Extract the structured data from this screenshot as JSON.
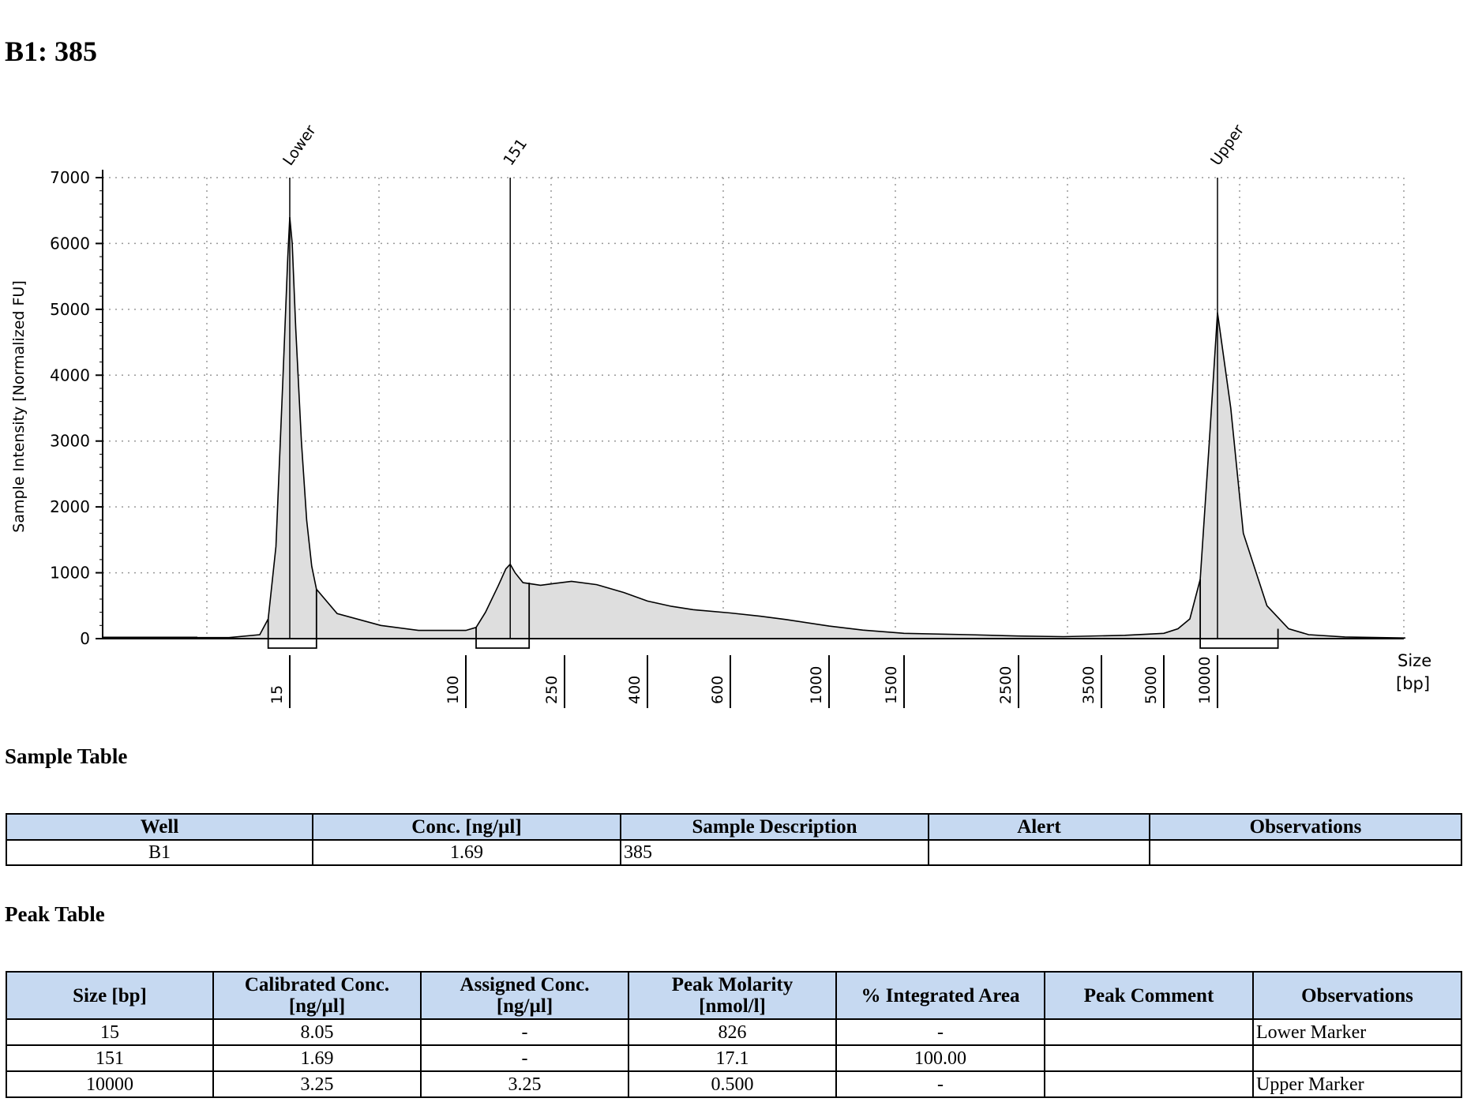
{
  "title": "B1: 385",
  "chart_data": {
    "type": "area",
    "ylabel": "Sample Intensity [Normalized FU]",
    "xlabel": "Size\n[bp]",
    "xlabel_lines": [
      "Size",
      "[bp]"
    ],
    "ylim": [
      0,
      7000
    ],
    "y_ticks": [
      0,
      1000,
      2000,
      3000,
      4000,
      5000,
      6000,
      7000
    ],
    "x_ladder": [
      "15",
      "100",
      "250",
      "400",
      "600",
      "1000",
      "1500",
      "2500",
      "3500",
      "5000",
      "10000"
    ],
    "grid": true,
    "peak_labels": [
      "Lower",
      "151",
      "Upper"
    ],
    "series": [
      {
        "values": [
          [
            5,
            15
          ],
          [
            8,
            15
          ],
          [
            11,
            60
          ],
          [
            12,
            300
          ],
          [
            13,
            1400
          ],
          [
            14,
            4000
          ],
          [
            14.7,
            5800
          ],
          [
            15,
            6400
          ],
          [
            15.4,
            6000
          ],
          [
            16,
            4700
          ],
          [
            17,
            3000
          ],
          [
            18,
            1800
          ],
          [
            19,
            1100
          ],
          [
            20,
            750
          ],
          [
            25,
            380
          ],
          [
            40,
            200
          ],
          [
            60,
            125
          ],
          [
            100,
            125
          ],
          [
            110,
            170
          ],
          [
            120,
            400
          ],
          [
            135,
            800
          ],
          [
            145,
            1060
          ],
          [
            151,
            1130
          ],
          [
            158,
            1000
          ],
          [
            170,
            850
          ],
          [
            200,
            810
          ],
          [
            230,
            840
          ],
          [
            260,
            870
          ],
          [
            300,
            820
          ],
          [
            350,
            700
          ],
          [
            400,
            570
          ],
          [
            450,
            490
          ],
          [
            500,
            440
          ],
          [
            600,
            390
          ],
          [
            700,
            340
          ],
          [
            800,
            290
          ],
          [
            1000,
            190
          ],
          [
            1200,
            130
          ],
          [
            1500,
            80
          ],
          [
            2000,
            60
          ],
          [
            2500,
            40
          ],
          [
            3000,
            30
          ],
          [
            4000,
            50
          ],
          [
            5000,
            80
          ],
          [
            6000,
            150
          ],
          [
            7000,
            300
          ],
          [
            8000,
            900
          ],
          [
            9000,
            3000
          ],
          [
            10000,
            4950
          ],
          [
            10500,
            3500
          ],
          [
            11000,
            1600
          ],
          [
            12000,
            500
          ],
          [
            13000,
            150
          ],
          [
            14000,
            60
          ],
          [
            16000,
            25
          ],
          [
            20000,
            10
          ]
        ]
      }
    ],
    "peaks": [
      {
        "label": "Lower",
        "size": 15,
        "bar_from": 12,
        "bar_to": 20
      },
      {
        "label": "151",
        "size": 151,
        "bar_from": 110,
        "bar_to": 180
      },
      {
        "label": "Upper",
        "size": 10000,
        "bar_from": 8000,
        "bar_to": 12500
      }
    ]
  },
  "sample_table": {
    "title": "Sample Table",
    "headers": [
      "Well",
      "Conc. [ng/µl]",
      "Sample Description",
      "Alert",
      "Observations"
    ],
    "rows": [
      [
        "B1",
        "1.69",
        "385",
        "",
        ""
      ]
    ]
  },
  "peak_table": {
    "title": "Peak Table",
    "headers": [
      [
        "Size [bp]"
      ],
      [
        "Calibrated Conc.",
        "[ng/µl]"
      ],
      [
        "Assigned Conc.",
        "[ng/µl]"
      ],
      [
        "Peak Molarity",
        "[nmol/l]"
      ],
      [
        "% Integrated Area"
      ],
      [
        "Peak Comment"
      ],
      [
        "Observations"
      ]
    ],
    "rows": [
      [
        "15",
        "8.05",
        "-",
        "826",
        "-",
        "",
        "Lower Marker"
      ],
      [
        "151",
        "1.69",
        "-",
        "17.1",
        "100.00",
        "",
        ""
      ],
      [
        "10000",
        "3.25",
        "3.25",
        "0.500",
        "-",
        "",
        "Upper Marker"
      ]
    ]
  }
}
